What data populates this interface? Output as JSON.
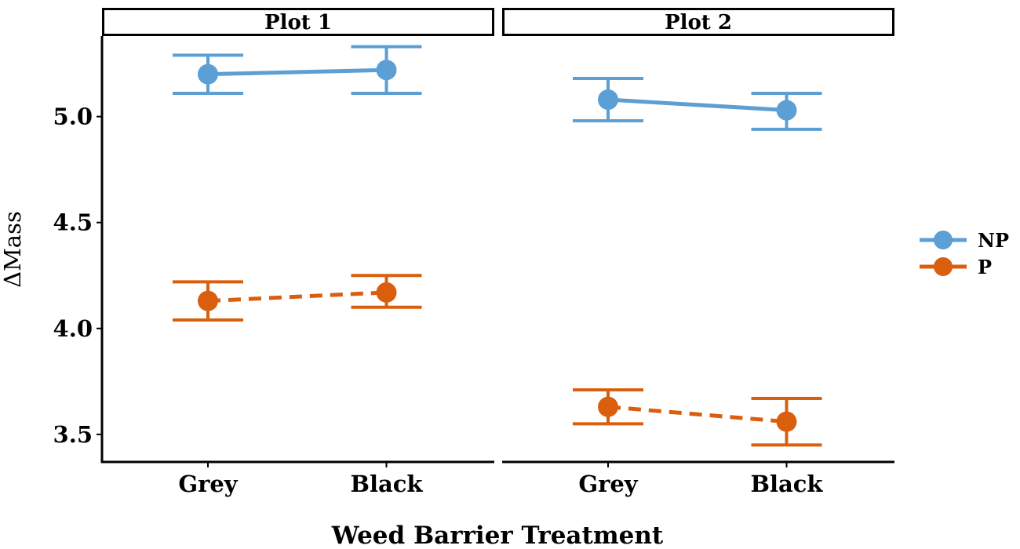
{
  "chart_data": {
    "type": "line",
    "xlabel": "Weed Barrier Treatment",
    "ylabel": "ΔMass",
    "categories": [
      "Grey",
      "Black"
    ],
    "ylim": [
      3.37,
      5.38
    ],
    "yticks": [
      3.5,
      4.0,
      4.5,
      5.0
    ],
    "ytick_labels": [
      "3.5",
      "4.0",
      "4.5",
      "5.0"
    ],
    "grid": false,
    "legend_position": "right",
    "colors": {
      "NP": "#5b9fd4",
      "P": "#d95f0e"
    },
    "legend": [
      {
        "name": "NP",
        "color": "#5b9fd4",
        "linestyle": "solid"
      },
      {
        "name": "P",
        "color": "#d95f0e",
        "linestyle": "dashed"
      }
    ],
    "panels": [
      {
        "title": "Plot 1",
        "series": [
          {
            "name": "NP",
            "values": [
              5.2,
              5.22
            ],
            "lower": [
              5.11,
              5.11
            ],
            "upper": [
              5.29,
              5.33
            ]
          },
          {
            "name": "P",
            "values": [
              4.13,
              4.17
            ],
            "lower": [
              4.04,
              4.1
            ],
            "upper": [
              4.22,
              4.25
            ]
          }
        ]
      },
      {
        "title": "Plot 2",
        "series": [
          {
            "name": "NP",
            "values": [
              5.08,
              5.03
            ],
            "lower": [
              4.98,
              4.94
            ],
            "upper": [
              5.18,
              5.11
            ]
          },
          {
            "name": "P",
            "values": [
              3.63,
              3.56
            ],
            "lower": [
              3.55,
              3.45
            ],
            "upper": [
              3.71,
              3.67
            ]
          }
        ]
      }
    ]
  }
}
